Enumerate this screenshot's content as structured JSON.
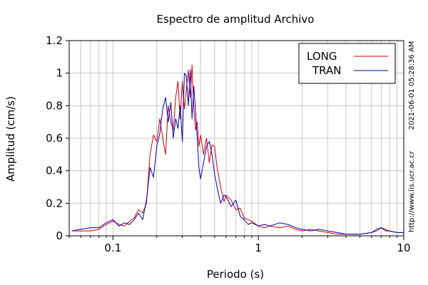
{
  "chart_data": {
    "type": "line",
    "title": "Espectro de amplitud Archivo",
    "xlabel": "Periodo (s)",
    "ylabel": "Amplitud (cm/s)",
    "x_scale": "log",
    "xlim": [
      0.05,
      10
    ],
    "ylim": [
      0,
      1.2
    ],
    "x_ticks": [
      0.1,
      1,
      10
    ],
    "x_tick_labels": [
      "0.1",
      "1",
      "10"
    ],
    "y_ticks": [
      0,
      0.2,
      0.4,
      0.6,
      0.8,
      1.0,
      1.2
    ],
    "y_tick_labels": [
      "0",
      "0.2",
      "0.4",
      "0.6",
      "0.8",
      "1",
      "1.2"
    ],
    "grid": true,
    "legend_position": "top-right",
    "series": [
      {
        "name": "LONG",
        "color": "#dd0000",
        "x": [
          0.052,
          0.06,
          0.07,
          0.08,
          0.09,
          0.1,
          0.11,
          0.12,
          0.13,
          0.14,
          0.15,
          0.16,
          0.17,
          0.18,
          0.19,
          0.2,
          0.21,
          0.22,
          0.23,
          0.24,
          0.25,
          0.26,
          0.27,
          0.28,
          0.29,
          0.3,
          0.31,
          0.32,
          0.33,
          0.34,
          0.35,
          0.36,
          0.37,
          0.38,
          0.39,
          0.4,
          0.42,
          0.44,
          0.46,
          0.48,
          0.5,
          0.52,
          0.55,
          0.58,
          0.6,
          0.65,
          0.7,
          0.75,
          0.8,
          0.85,
          0.9,
          1.0,
          1.1,
          1.2,
          1.4,
          1.6,
          1.8,
          2.0,
          2.3,
          2.6,
          3.0,
          3.5,
          4.0,
          5.0,
          6.0,
          6.5,
          7.0,
          7.5,
          8.0,
          9.0,
          10.0
        ],
        "y": [
          0.03,
          0.03,
          0.03,
          0.04,
          0.07,
          0.09,
          0.07,
          0.06,
          0.09,
          0.11,
          0.16,
          0.14,
          0.2,
          0.5,
          0.62,
          0.58,
          0.72,
          0.6,
          0.5,
          0.8,
          0.7,
          0.65,
          0.85,
          0.95,
          0.72,
          0.95,
          0.78,
          0.9,
          1.02,
          0.85,
          1.05,
          0.78,
          0.65,
          0.7,
          0.55,
          0.62,
          0.5,
          0.6,
          0.45,
          0.56,
          0.55,
          0.42,
          0.3,
          0.21,
          0.25,
          0.22,
          0.16,
          0.17,
          0.11,
          0.1,
          0.09,
          0.06,
          0.05,
          0.06,
          0.05,
          0.06,
          0.04,
          0.03,
          0.04,
          0.03,
          0.02,
          0.01,
          0.01,
          0.01,
          0.02,
          0.03,
          0.05,
          0.04,
          0.03,
          0.02,
          0.02
        ]
      },
      {
        "name": "TRAN",
        "color": "#0000bb",
        "x": [
          0.052,
          0.06,
          0.07,
          0.08,
          0.09,
          0.1,
          0.11,
          0.12,
          0.13,
          0.14,
          0.15,
          0.16,
          0.17,
          0.18,
          0.19,
          0.2,
          0.21,
          0.22,
          0.23,
          0.24,
          0.25,
          0.26,
          0.27,
          0.28,
          0.29,
          0.3,
          0.31,
          0.32,
          0.33,
          0.34,
          0.35,
          0.36,
          0.37,
          0.38,
          0.39,
          0.4,
          0.42,
          0.44,
          0.46,
          0.48,
          0.5,
          0.52,
          0.55,
          0.58,
          0.6,
          0.65,
          0.7,
          0.75,
          0.8,
          0.85,
          0.9,
          1.0,
          1.1,
          1.2,
          1.4,
          1.6,
          1.8,
          2.0,
          2.3,
          2.6,
          3.0,
          3.5,
          4.0,
          5.0,
          6.0,
          6.5,
          7.0,
          7.5,
          8.0,
          9.0,
          10.0
        ],
        "y": [
          0.03,
          0.04,
          0.05,
          0.05,
          0.08,
          0.1,
          0.06,
          0.08,
          0.07,
          0.1,
          0.14,
          0.1,
          0.22,
          0.42,
          0.36,
          0.55,
          0.63,
          0.78,
          0.85,
          0.7,
          0.82,
          0.6,
          0.72,
          0.66,
          0.8,
          0.58,
          1.0,
          0.98,
          0.8,
          1.02,
          0.72,
          0.92,
          0.76,
          0.6,
          0.42,
          0.35,
          0.45,
          0.55,
          0.58,
          0.5,
          0.38,
          0.3,
          0.2,
          0.25,
          0.24,
          0.18,
          0.22,
          0.12,
          0.1,
          0.07,
          0.08,
          0.06,
          0.07,
          0.06,
          0.08,
          0.07,
          0.05,
          0.04,
          0.03,
          0.04,
          0.03,
          0.02,
          0.01,
          0.01,
          0.02,
          0.04,
          0.05,
          0.03,
          0.03,
          0.02,
          0.02
        ]
      }
    ]
  },
  "side_timestamp": "2021-06-01 05:28:36 AM",
  "side_url": "http://www.lis.ucr.ac.cr"
}
